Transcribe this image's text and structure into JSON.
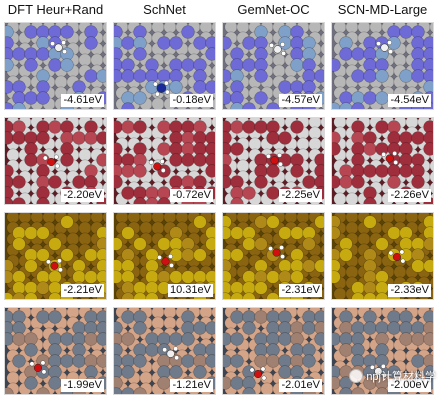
{
  "headers": [
    "DFT Heur+Rand",
    "SchNet",
    "GemNet-OC",
    "SCN-MD-Large"
  ],
  "rows": [
    {
      "theme": {
        "bg": "#6f6f7f",
        "bottom": "#b7b7b7",
        "top": "#6e6ad6",
        "stripe": "#7fa0c8"
      },
      "energies": [
        "-4.61eV",
        "-0.18eV",
        "-4.57eV",
        "-4.54eV"
      ]
    },
    {
      "theme": {
        "bg": "#5e1c25",
        "bottom": "#d7d7d7",
        "top": "#9e2e3c",
        "stripe": "#b54652"
      },
      "energies": [
        "-2.20eV",
        "-0.72eV",
        "-2.25eV",
        "-2.26eV"
      ]
    },
    {
      "theme": {
        "bg": "#5a4305",
        "bottom": "#8a6410",
        "top": "#c7aa10",
        "stripe": "#b08a18"
      },
      "energies": [
        "-2.21eV",
        "10.31eV",
        "-2.31eV",
        "-2.33eV"
      ]
    },
    {
      "theme": {
        "bg": "#3d4552",
        "bottom": "#d4a488",
        "top": "#6f7a8a",
        "stripe": "#a08070"
      },
      "energies": [
        "-1.99eV",
        "-1.21eV",
        "-2.01eV",
        "-2.00eV"
      ]
    }
  ],
  "watermark": {
    "text": "npj计算材料学"
  }
}
